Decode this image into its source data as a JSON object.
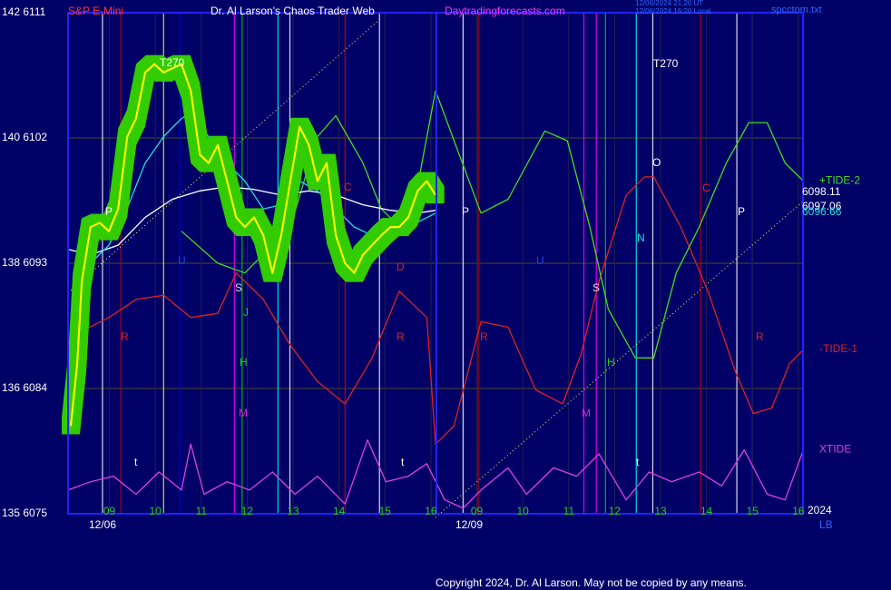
{
  "chart_data": {
    "type": "line",
    "title": "Dr. Al Larson's Chaos Trader Web",
    "symbol": "S&P E-Mini",
    "site": "Daytradingforecasts.com",
    "timestamps": [
      "12/06/2024 21:20 UT",
      "12/06/2024 16:20 Local"
    ],
    "file": "spcctom.txt",
    "copyright": "Copyright 2024, Dr. Al Larson. May not be copied by any means.",
    "year_label": "2024",
    "lb_label": "LB",
    "dates": [
      "12/06",
      "12/09"
    ],
    "ylim": [
      6075,
      6111
    ],
    "yticks": [
      {
        "value": 6111,
        "label": "142 6111"
      },
      {
        "value": 6102,
        "label": "140 6102"
      },
      {
        "value": 6093,
        "label": "138 6093"
      },
      {
        "value": 6084,
        "label": "136 6084"
      },
      {
        "value": 6075,
        "label": "135 6075"
      }
    ],
    "xlim": [
      8.1,
      24.1
    ],
    "xticks": [
      {
        "value": 9,
        "label": "09"
      },
      10,
      11,
      12,
      13,
      14,
      15,
      16,
      {
        "value": 17,
        "label": "09"
      },
      {
        "value": 18,
        "label": "10"
      },
      {
        "value": 19,
        "label": "11"
      },
      {
        "value": 20,
        "label": "12"
      },
      {
        "value": 21,
        "label": "13"
      },
      {
        "value": 22,
        "label": "14"
      },
      {
        "value": 23,
        "label": "15"
      },
      {
        "value": 24,
        "label": "16"
      }
    ],
    "grid": true,
    "series": [
      {
        "name": "XTIDE",
        "color": "#e040e0",
        "x": [
          8.1,
          8.59,
          9.09,
          9.58,
          10.08,
          10.57,
          10.77,
          11.06,
          11.56,
          12.05,
          12.55,
          13.04,
          13.53,
          14.13,
          14.62,
          15.02,
          15.51,
          15.91,
          16.3,
          16.7,
          17.09,
          17.68,
          18.08,
          18.67,
          19.17,
          19.66,
          20.25,
          20.75,
          21.24,
          21.84,
          22.33,
          22.82,
          23.32,
          23.71,
          24.11
        ],
        "values": [
          6076.7,
          6077.3,
          6077.7,
          6076.4,
          6078.0,
          6076.7,
          6080.0,
          6076.4,
          6077.3,
          6076.7,
          6078.0,
          6076.4,
          6077.7,
          6075.7,
          6080.3,
          6077.3,
          6077.7,
          6078.6,
          6076.0,
          6075.4,
          6076.7,
          6078.3,
          6076.4,
          6078.3,
          6077.7,
          6079.3,
          6076.0,
          6078.0,
          6077.3,
          6078.0,
          6077.0,
          6079.6,
          6076.4,
          6076.0,
          6079.6
        ]
      },
      {
        "name": "-TIDE-1",
        "color": "#dd2222",
        "x": [
          8.2,
          8.99,
          9.58,
          10.18,
          10.77,
          11.36,
          11.76,
          12.35,
          12.94,
          13.53,
          14.13,
          14.72,
          15.31,
          15.91,
          16.1,
          16.5,
          17.09,
          17.68,
          18.28,
          18.87,
          19.27,
          19.66,
          20.25,
          20.65,
          20.85,
          21.44,
          22.03,
          22.63,
          23.02,
          23.42,
          23.81,
          24.11
        ],
        "values": [
          6087.8,
          6089.1,
          6090.4,
          6090.7,
          6089.1,
          6089.4,
          6092.3,
          6090.4,
          6087.1,
          6084.5,
          6082.9,
          6086.2,
          6091.0,
          6089.1,
          6080.0,
          6081.3,
          6088.8,
          6088.4,
          6083.9,
          6082.9,
          6086.5,
          6091.7,
          6097.9,
          6099.2,
          6099.2,
          6095.6,
          6091.0,
          6085.2,
          6082.2,
          6082.6,
          6085.8,
          6086.8
        ]
      },
      {
        "name": "+TIDE-2",
        "color": "#44dd22",
        "x": [
          10.57,
          11.36,
          11.95,
          12.94,
          13.53,
          13.93,
          14.52,
          14.92,
          15.51,
          16.1,
          17.09,
          17.68,
          18.48,
          18.97,
          19.46,
          19.86,
          20.45,
          20.85,
          21.34,
          21.84,
          22.43,
          22.92,
          23.32,
          23.71,
          24.11
        ],
        "values": [
          6095.3,
          6093.0,
          6092.3,
          6095.6,
          6102.1,
          6103.6,
          6100.2,
          6096.9,
          6095.0,
          6105.4,
          6096.6,
          6097.6,
          6102.5,
          6101.8,
          6095.6,
          6089.7,
          6086.2,
          6086.2,
          6092.3,
          6095.6,
          6100.2,
          6103.1,
          6103.1,
          6100.2,
          6098.9
        ]
      },
      {
        "color": "#ffffff",
        "x": [
          8.1,
          8.59,
          9.19,
          9.78,
          10.37,
          10.97,
          11.56,
          12.15,
          12.74,
          13.34,
          13.93,
          14.52,
          15.12,
          15.71,
          16.1
        ],
        "values": [
          6094.0,
          6093.6,
          6094.3,
          6096.3,
          6097.6,
          6098.2,
          6098.5,
          6098.3,
          6097.9,
          6098.2,
          6097.9,
          6097.2,
          6096.8,
          6096.6,
          6096.8
        ]
      },
      {
        "color": "#22dddd",
        "x": [
          8.2,
          8.59,
          8.99,
          9.38,
          9.78,
          10.18,
          10.57,
          10.77,
          11.16,
          11.56,
          11.95,
          12.35,
          12.74,
          13.14,
          13.53,
          13.93,
          14.33,
          14.72,
          15.12,
          15.51,
          16.1
        ],
        "values": [
          6090.4,
          6093.0,
          6094.3,
          6096.9,
          6100.2,
          6102.1,
          6103.4,
          6103.8,
          6102.1,
          6100.2,
          6098.9,
          6096.9,
          6097.2,
          6098.9,
          6098.2,
          6096.9,
          6095.6,
          6095.0,
          6095.0,
          6095.6,
          6096.6
        ]
      },
      {
        "color": "#ffff00",
        "glow": true,
        "x": [
          8.16,
          8.3,
          8.4,
          8.59,
          8.79,
          8.99,
          9.19,
          9.39,
          9.58,
          9.78,
          9.98,
          10.18,
          10.37,
          10.57,
          10.77,
          10.97,
          11.16,
          11.36,
          11.56,
          11.76,
          11.95,
          12.15,
          12.35,
          12.55,
          12.74,
          12.94,
          13.14,
          13.34,
          13.53,
          13.73,
          13.93,
          14.13,
          14.33,
          14.52,
          14.72,
          14.92,
          15.12,
          15.31,
          15.51,
          15.71,
          15.91,
          16.1
        ],
        "values": [
          6081.3,
          6085.8,
          6091.7,
          6095.6,
          6095.9,
          6095.3,
          6096.9,
          6102.1,
          6103.4,
          6106.7,
          6107.3,
          6106.7,
          6107.0,
          6107.3,
          6105.4,
          6100.8,
          6100.2,
          6101.5,
          6098.9,
          6096.3,
          6095.6,
          6096.3,
          6095.0,
          6092.3,
          6095.0,
          6098.9,
          6102.8,
          6101.5,
          6098.9,
          6100.2,
          6095.0,
          6093.0,
          6092.3,
          6093.6,
          6094.3,
          6095.0,
          6095.6,
          6095.6,
          6096.3,
          6098.2,
          6098.9,
          6097.9
        ]
      }
    ],
    "price_labels": [
      {
        "value": 6098.11,
        "color": "#ffffff"
      },
      {
        "value": 6097.06,
        "color": "#ffffff"
      },
      {
        "value": 6096.66,
        "color": "#22dddd"
      }
    ],
    "event_lines": [
      {
        "x": 8.85,
        "color": "#ffffff"
      },
      {
        "x": 9.25,
        "color": "#cc0000"
      },
      {
        "x": 10.18,
        "color": "#ffff00"
      },
      {
        "x": 10.53,
        "color": "#0000ff"
      },
      {
        "x": 11.72,
        "color": "#ff00ff"
      },
      {
        "x": 11.89,
        "color": "#00cc00"
      },
      {
        "x": 12.67,
        "color": "#00ffff"
      },
      {
        "x": 12.93,
        "color": "#ffffff"
      },
      {
        "x": 14.13,
        "color": "#cc0000"
      },
      {
        "x": 14.88,
        "color": "#ffffff"
      },
      {
        "x": 16.7,
        "color": "#ffffff"
      },
      {
        "x": 17.03,
        "color": "#cc0000"
      },
      {
        "x": 19.33,
        "color": "#ff00ff"
      },
      {
        "x": 19.6,
        "color": "#ff00ff"
      },
      {
        "x": 19.8,
        "color": "#00cc00"
      },
      {
        "x": 20.47,
        "color": "#00ffff"
      },
      {
        "x": 20.83,
        "color": "#ffffff"
      },
      {
        "x": 21.87,
        "color": "#cc0000"
      },
      {
        "x": 22.66,
        "color": "#ffffff"
      },
      {
        "x": 22.98,
        "color": "#0000ff"
      }
    ],
    "event_labels": [
      "P",
      "P",
      "P",
      "C",
      "C",
      "U",
      "U",
      "S",
      "S",
      "J",
      "H",
      "H",
      "M",
      "M",
      "R",
      "R",
      "R",
      "R",
      "t",
      "t",
      "t",
      "N",
      "O",
      "D",
      "T270",
      "T270"
    ]
  }
}
